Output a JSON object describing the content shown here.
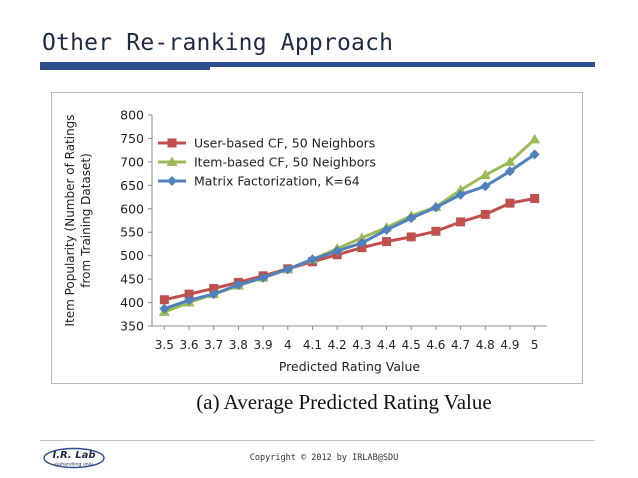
{
  "slide": {
    "title": "Other Re-ranking Approach",
    "caption": "(a) Average Predicted Rating Value",
    "copyright": "Copyright © 2012 by IRLAB@SDU",
    "logo_text": "I.R. Lab",
    "logo_subtext": "@shandong univ."
  },
  "chart_data": {
    "type": "line",
    "title": "",
    "xlabel": "Predicted Rating Value",
    "ylabel": "Item Popularity (Number of Ratings from Training Dataset)",
    "ylabel_lines": [
      "Item Popularity (Number of Ratings",
      "from Training Dataset)"
    ],
    "categories": [
      "3.5",
      "3.6",
      "3.7",
      "3.8",
      "3.9",
      "4",
      "4.1",
      "4.2",
      "4.3",
      "4.4",
      "4.5",
      "4.6",
      "4.7",
      "4.8",
      "4.9",
      "5"
    ],
    "ylim": [
      350,
      800
    ],
    "yticks": [
      350,
      400,
      450,
      500,
      550,
      600,
      650,
      700,
      750,
      800
    ],
    "legend_position": "top-left",
    "grid": false,
    "series": [
      {
        "name": "User-based CF, 50 Neighbors",
        "color": "#c0504d",
        "marker": "square",
        "values": [
          406,
          418,
          430,
          443,
          457,
          472,
          487,
          502,
          517,
          530,
          540,
          552,
          572,
          588,
          612,
          622
        ]
      },
      {
        "name": "Item-based CF, 50 Neighbors",
        "color": "#9bbb59",
        "marker": "triangle",
        "values": [
          380,
          400,
          418,
          436,
          453,
          471,
          492,
          515,
          538,
          560,
          585,
          604,
          640,
          672,
          700,
          748
        ]
      },
      {
        "name": "Matrix Factorization, K=64",
        "color": "#4f81bd",
        "marker": "diamond",
        "values": [
          387,
          405,
          418,
          438,
          453,
          471,
          492,
          510,
          527,
          555,
          580,
          603,
          630,
          648,
          680,
          716
        ]
      }
    ]
  }
}
